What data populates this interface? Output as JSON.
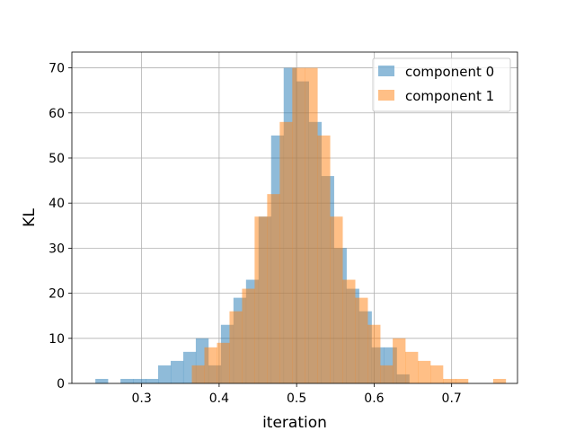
{
  "chart_data": {
    "type": "bar",
    "title": "",
    "xlabel": "iteration",
    "ylabel": "KL",
    "xlim": [
      0.21,
      0.785
    ],
    "ylim": [
      0,
      73.5
    ],
    "xticks": [
      "0.3",
      "0.4",
      "0.5",
      "0.6",
      "0.7"
    ],
    "yticks": [
      "0",
      "10",
      "20",
      "30",
      "40",
      "50",
      "60",
      "70"
    ],
    "grid": true,
    "legend_position": "top-right",
    "bin_width": 0.0162,
    "series": [
      {
        "name": "component 0",
        "color": "#1f77b4",
        "opacity": 0.5,
        "bins": [
          [
            0.2403,
            1
          ],
          [
            0.2565,
            0
          ],
          [
            0.2727,
            1
          ],
          [
            0.2889,
            1
          ],
          [
            0.3051,
            1
          ],
          [
            0.3213,
            4
          ],
          [
            0.3375,
            5
          ],
          [
            0.3537,
            7
          ],
          [
            0.3699,
            10
          ],
          [
            0.3861,
            4
          ],
          [
            0.4023,
            13
          ],
          [
            0.4185,
            19
          ],
          [
            0.4347,
            23
          ],
          [
            0.4509,
            37
          ],
          [
            0.4671,
            55
          ],
          [
            0.4833,
            70
          ],
          [
            0.4995,
            67
          ],
          [
            0.5157,
            58
          ],
          [
            0.5319,
            46
          ],
          [
            0.5481,
            30
          ],
          [
            0.5643,
            21
          ],
          [
            0.5805,
            16
          ],
          [
            0.5967,
            8
          ],
          [
            0.6129,
            8
          ],
          [
            0.6291,
            2
          ]
        ]
      },
      {
        "name": "component 1",
        "color": "#ff7f0e",
        "opacity": 0.5,
        "bins": [
          [
            0.3648,
            4
          ],
          [
            0.381,
            8
          ],
          [
            0.3972,
            9
          ],
          [
            0.4134,
            16
          ],
          [
            0.4296,
            21
          ],
          [
            0.4458,
            37
          ],
          [
            0.462,
            42
          ],
          [
            0.4782,
            58
          ],
          [
            0.4944,
            70
          ],
          [
            0.5106,
            70
          ],
          [
            0.5268,
            55
          ],
          [
            0.543,
            37
          ],
          [
            0.5592,
            23
          ],
          [
            0.5754,
            19
          ],
          [
            0.5916,
            13
          ],
          [
            0.6078,
            4
          ],
          [
            0.624,
            10
          ],
          [
            0.6402,
            7
          ],
          [
            0.6564,
            5
          ],
          [
            0.6726,
            4
          ],
          [
            0.6888,
            1
          ],
          [
            0.705,
            1
          ],
          [
            0.7212,
            0
          ],
          [
            0.7374,
            0
          ],
          [
            0.7536,
            1
          ]
        ]
      }
    ]
  }
}
